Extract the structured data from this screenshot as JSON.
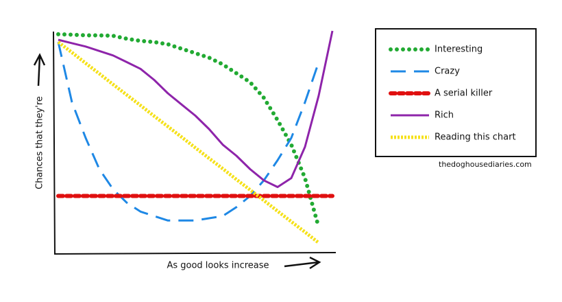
{
  "chart_data": {
    "type": "line",
    "x_label": "As good looks increase",
    "y_label": "Chances that they're",
    "source": "thedoghousediaries.com",
    "xlim": [
      0,
      10
    ],
    "ylim": [
      0,
      100
    ],
    "x": [
      0,
      0.5,
      1,
      1.5,
      2,
      2.5,
      3,
      3.5,
      4,
      4.5,
      5,
      5.5,
      6,
      6.5,
      7,
      7.5,
      8,
      8.5,
      9,
      9.5,
      10
    ],
    "series": [
      {
        "name": "Interesting",
        "color": "#22aa33",
        "dash": "dotted",
        "values": [
          98.5,
          98.3,
          98,
          98,
          97.8,
          96.5,
          95.5,
          95,
          94,
          92,
          90,
          88,
          85,
          81,
          77,
          70,
          60,
          49,
          34,
          12,
          null
        ]
      },
      {
        "name": "Crazy",
        "color": "#1e88e5",
        "dash": "dashed",
        "values": [
          95,
          68,
          52,
          38,
          29,
          23,
          19,
          17,
          15,
          15,
          15,
          16,
          17,
          21,
          26,
          33,
          42,
          52,
          68,
          86,
          null
        ]
      },
      {
        "name": "A serial killer",
        "color": "#e01010",
        "dash": "beads",
        "values": [
          26,
          26,
          26,
          26,
          26,
          26,
          26,
          26,
          26,
          26,
          26,
          26,
          26,
          26,
          26,
          26,
          26,
          26,
          26,
          26,
          26
        ]
      },
      {
        "name": "Rich",
        "color": "#8e24aa",
        "dash": "solid",
        "values": [
          96,
          94.5,
          93,
          91,
          89,
          86,
          83,
          78,
          72,
          67,
          62,
          56,
          49,
          44,
          38,
          33,
          30,
          34,
          48,
          71,
          100
        ]
      },
      {
        "name": "Reading this chart",
        "color": "#f5e11a",
        "dash": "chain",
        "values": [
          95,
          90.3,
          85.5,
          80.8,
          76,
          71.3,
          66.6,
          61.8,
          57.1,
          52.4,
          47.6,
          42.9,
          38.2,
          33.4,
          28.7,
          24,
          19.2,
          14.5,
          9.8,
          5,
          null
        ]
      }
    ]
  }
}
